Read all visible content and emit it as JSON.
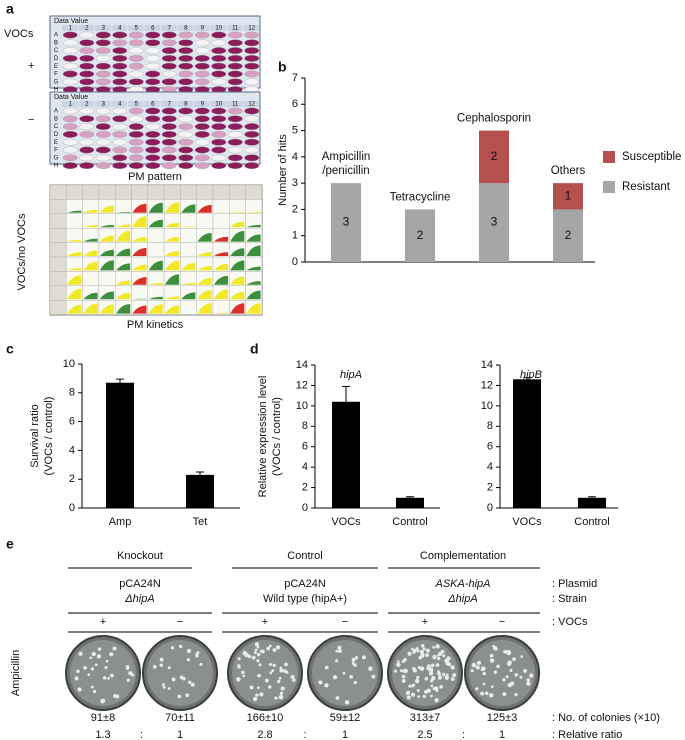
{
  "panel_labels": [
    "a",
    "b",
    "c",
    "d",
    "e"
  ],
  "panel_a": {
    "condition_label": "VOCs",
    "plus": "+",
    "minus": "−",
    "grid_header": "Data Value",
    "columns": [
      "1",
      "2",
      "3",
      "4",
      "5",
      "6",
      "7",
      "8",
      "9",
      "10",
      "11",
      "12"
    ],
    "rows": [
      "A",
      "B",
      "C",
      "D",
      "E",
      "F",
      "G",
      "H"
    ],
    "pattern_caption": "PM pattern",
    "kinetics_ylabel": "VOCs/no VOCs",
    "kinetics_caption": "PM kinetics"
  },
  "chart_data": [
    {
      "type": "bar",
      "stacked": true,
      "ylabel": "Number of hits",
      "categories": [
        "Ampicillin\n/penicillin",
        "Tetracycline",
        "Cephalosporin",
        "Others"
      ],
      "series": [
        {
          "name": "Resistant",
          "color": "#a6a6a6",
          "values": [
            3,
            2,
            3,
            2
          ]
        },
        {
          "name": "Susceptible",
          "color": "#b5504f",
          "values": [
            0,
            0,
            2,
            1
          ]
        }
      ],
      "ylim": [
        0,
        7
      ],
      "yticks": [
        0,
        1,
        2,
        3,
        4,
        5,
        6,
        7
      ],
      "data_labels": true,
      "legend": "right"
    },
    {
      "type": "bar",
      "ylabel": "Survival ratio\n(VOCs / control)",
      "categories": [
        "Amp",
        "Tet"
      ],
      "series": [
        {
          "color": "#000000",
          "values": [
            8.7,
            2.3
          ],
          "errors": [
            0.25,
            0.2
          ]
        }
      ],
      "ylim": [
        0,
        10
      ],
      "yticks": [
        0,
        2,
        4,
        6,
        8,
        10
      ]
    },
    {
      "type": "bar",
      "ylabel": "Relative expression level\n(VOCs / control)",
      "annotation": "hipA",
      "categories": [
        "VOCs",
        "Control"
      ],
      "series": [
        {
          "color": "#000000",
          "values": [
            10.4,
            1.0
          ],
          "errors": [
            1.5,
            0.1
          ]
        }
      ],
      "ylim": [
        0,
        14
      ],
      "yticks": [
        0,
        2,
        4,
        6,
        8,
        10,
        12,
        14
      ]
    },
    {
      "type": "bar",
      "annotation": "hipB",
      "categories": [
        "VOCs",
        "Control"
      ],
      "series": [
        {
          "color": "#000000",
          "values": [
            12.6,
            1.0
          ],
          "errors": [
            0.15,
            0.1
          ]
        }
      ],
      "ylim": [
        0,
        14
      ],
      "yticks": [
        0,
        2,
        4,
        6,
        8,
        10,
        12,
        14
      ]
    }
  ],
  "panel_e": {
    "groups": [
      {
        "name": "Knockout",
        "plasmid": "pCA24N",
        "strain": "ΔhipA",
        "signs": [
          "+",
          "−"
        ],
        "colonies": [
          "91±8",
          "70±11"
        ],
        "ratio": [
          "1.3",
          "1"
        ]
      },
      {
        "name": "Control",
        "plasmid": "pCA24N",
        "strain": "Wild type (hipA+)",
        "signs": [
          "+",
          "−"
        ],
        "colonies": [
          "166±10",
          "59±12"
        ],
        "ratio": [
          "2.8",
          "1"
        ]
      },
      {
        "name": "Complementation",
        "plasmid": "ASKA-hipA",
        "strain": "ΔhipA",
        "signs": [
          "+",
          "−"
        ],
        "colonies": [
          "313±7",
          "125±3"
        ],
        "ratio": [
          "2.5",
          "1"
        ]
      }
    ],
    "ratio_separator": ":",
    "row_label": "Ampicillin",
    "legend": [
      ": Plasmid",
      ": Strain",
      ": VOCs",
      ": No. of colonies (×10)",
      ": Relative ratio"
    ]
  }
}
